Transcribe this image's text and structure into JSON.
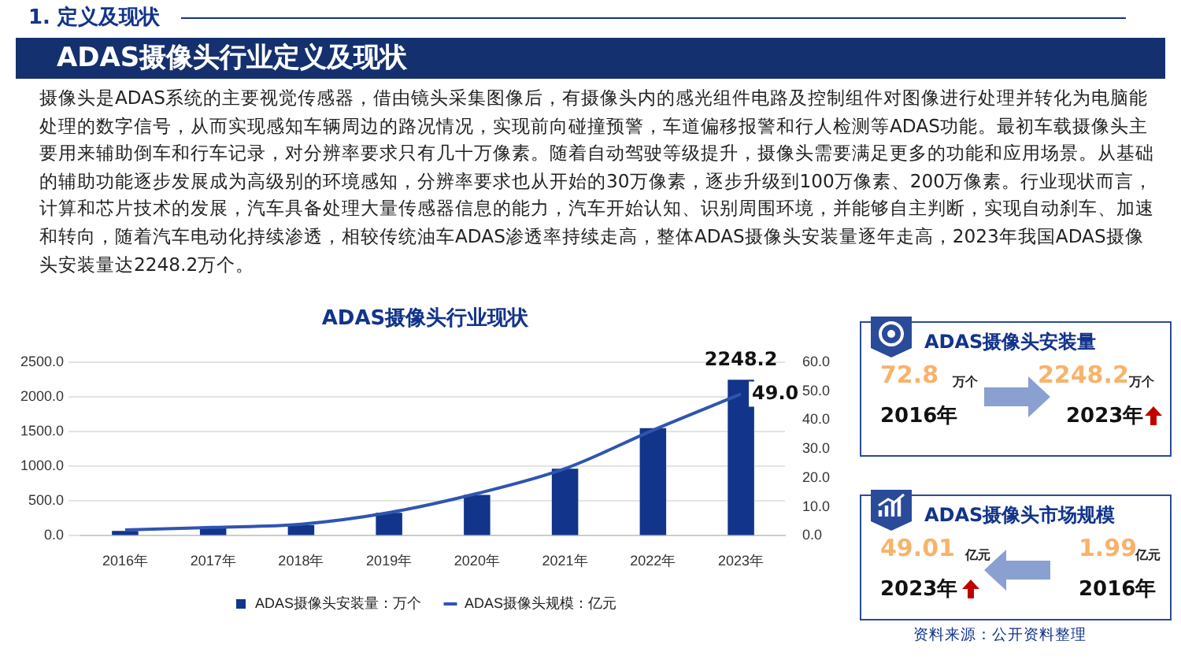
{
  "chart_data": [
    {
      "type": "other",
      "subtitle": "1. 定义及现状",
      "title": "ADAS摄像头行业定义及现状",
      "annotations": [
        "摄像头是ADAS系统的主要视觉传感器，借由镜头采集图像后，有摄像头内的感光组件电路及控制组件对图像进行处理并转化为电脑能处理的数字信号，从而实现感知车辆周边的路况情况，实现前向碰撞预警，车道偏移报警和行人检测等ADAS功能。最初车载摄像头主要用来辅助倒车和行车记录，对分辨率要求只有几十万像素。随着自动驾驶等级提升，摄像头需要满足更多的功能和应用场景。从基础的辅助功能逐步发展成为高级别的环境感知，分辨率要求也从开始的30万像素，逐步升级到100万像素、200万像素。行业现状而言，计算和芯片技术的发展，汽车具备处理大量传感器信息的能力，汽车开始认知、识别周围环境，并能够自主判断，实现自动刹车、加速和转向，随着汽车电动化持续渗透，相较传统油车ADAS渗透率持续走高，整体ADAS摄像头安装量逐年走高，2023年我国ADAS摄像头安装量达2248.2万个。",
        "资料来源：公开资料整理"
      ]
    },
    {
      "type": "bar",
      "title": "ADAS摄像头行业现状",
      "categories": [
        "2016年",
        "2017年",
        "2018年",
        "2019年",
        "2020年",
        "2021年",
        "2022年",
        "2023年"
      ],
      "series": [
        {
          "type": "bar",
          "name": "ADAS摄像头安装量：万个",
          "color": "#12348a",
          "values": [
            70,
            110,
            155,
            332,
            589,
            967,
            1550,
            2248.2
          ],
          "value_labels": [
            null,
            null,
            null,
            null,
            null,
            null,
            null,
            "2248.2"
          ]
        },
        {
          "type": "line",
          "axis": "y2",
          "name": "ADAS摄像头规模：亿元",
          "color": "#2f55b0",
          "values": [
            2.0,
            2.9,
            4.0,
            8.0,
            14.6,
            23.2,
            36.5,
            49.0
          ],
          "value_labels": [
            null,
            null,
            null,
            null,
            null,
            null,
            null,
            "49.0"
          ]
        }
      ],
      "ylim": [
        0,
        2500
      ],
      "yticks": [
        {
          "value": 0,
          "label": "0.0"
        },
        {
          "value": 500,
          "label": "500.0"
        },
        {
          "value": 1000,
          "label": "1000.0"
        },
        {
          "value": 1500,
          "label": "1500.0"
        },
        {
          "value": 2000,
          "label": "2000.0"
        },
        {
          "value": 2500,
          "label": "2500.0"
        }
      ],
      "y2lim": [
        0,
        60
      ],
      "y2ticks": [
        {
          "value": 0,
          "label": "0.0"
        },
        {
          "value": 10,
          "label": "10.0"
        },
        {
          "value": 20,
          "label": "20.0"
        },
        {
          "value": 30,
          "label": "30.0"
        },
        {
          "value": 40,
          "label": "40.0"
        },
        {
          "value": 50,
          "label": "50.0"
        },
        {
          "value": 60,
          "label": "60.0"
        }
      ],
      "grid": "y",
      "legend": "bottom",
      "marker": "none",
      "line_style": "solid"
    },
    {
      "type": "other",
      "title": "ADAS摄像头安装量",
      "annotations": [
        "72.8",
        "万个",
        "2016年",
        "2248.2",
        "万个",
        "2023年"
      ]
    },
    {
      "type": "other",
      "title": "ADAS摄像头市场规模",
      "annotations": [
        "49.01",
        "亿元",
        "2023年",
        "1.99",
        "亿元",
        "2016年"
      ]
    }
  ]
}
